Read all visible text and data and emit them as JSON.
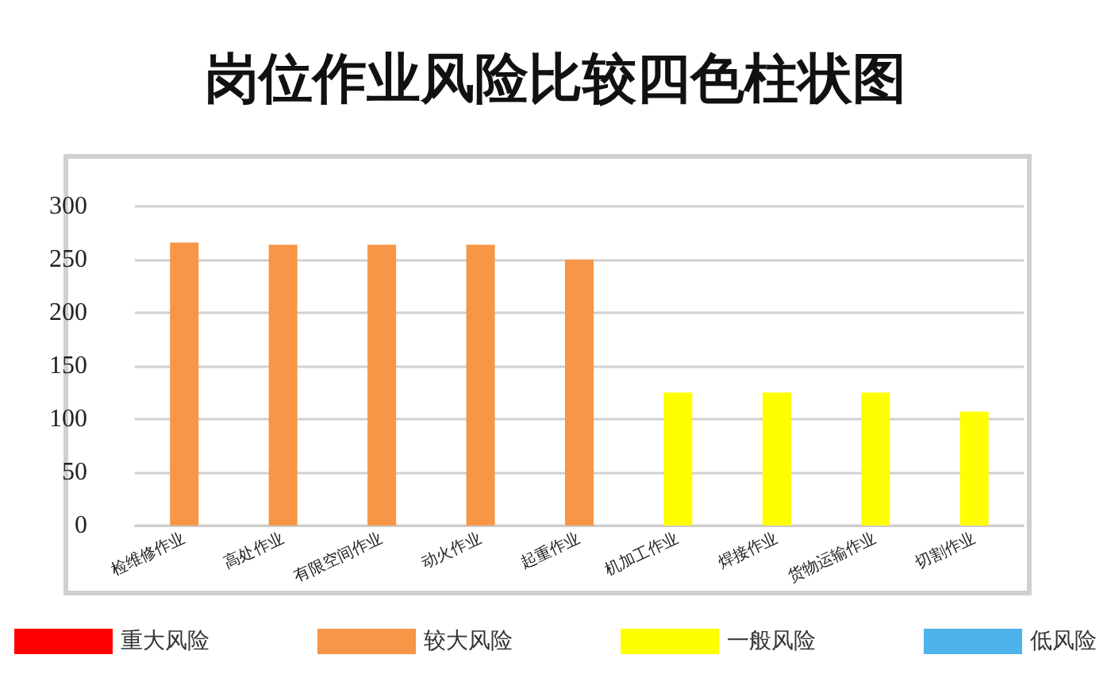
{
  "chart_data": {
    "type": "bar",
    "title": "岗位作业风险比较四色柱状图",
    "categories": [
      "检维修作业",
      "高处作业",
      "有限空间作业",
      "动火作业",
      "起重作业",
      "机加工作业",
      "焊接作业",
      "货物运输作业",
      "切割作业"
    ],
    "series": [
      {
        "name": "重大风险",
        "color": "#ff0000",
        "values": [
          null,
          null,
          null,
          null,
          null,
          null,
          null,
          null,
          null
        ]
      },
      {
        "name": "较大风险",
        "color": "#f79646",
        "values": [
          266,
          264,
          264,
          264,
          250,
          null,
          null,
          null,
          null
        ]
      },
      {
        "name": "一般风险",
        "color": "#ffff00",
        "values": [
          null,
          null,
          null,
          null,
          null,
          125,
          125,
          125,
          107
        ]
      },
      {
        "name": "低风险",
        "color": "#4eb3ea",
        "values": [
          null,
          null,
          null,
          null,
          null,
          null,
          null,
          null,
          null
        ]
      }
    ],
    "ylim": [
      0,
      300
    ],
    "yticks": [
      0,
      50,
      100,
      150,
      200,
      250,
      300
    ],
    "grid": "y",
    "legend": "bottom"
  }
}
